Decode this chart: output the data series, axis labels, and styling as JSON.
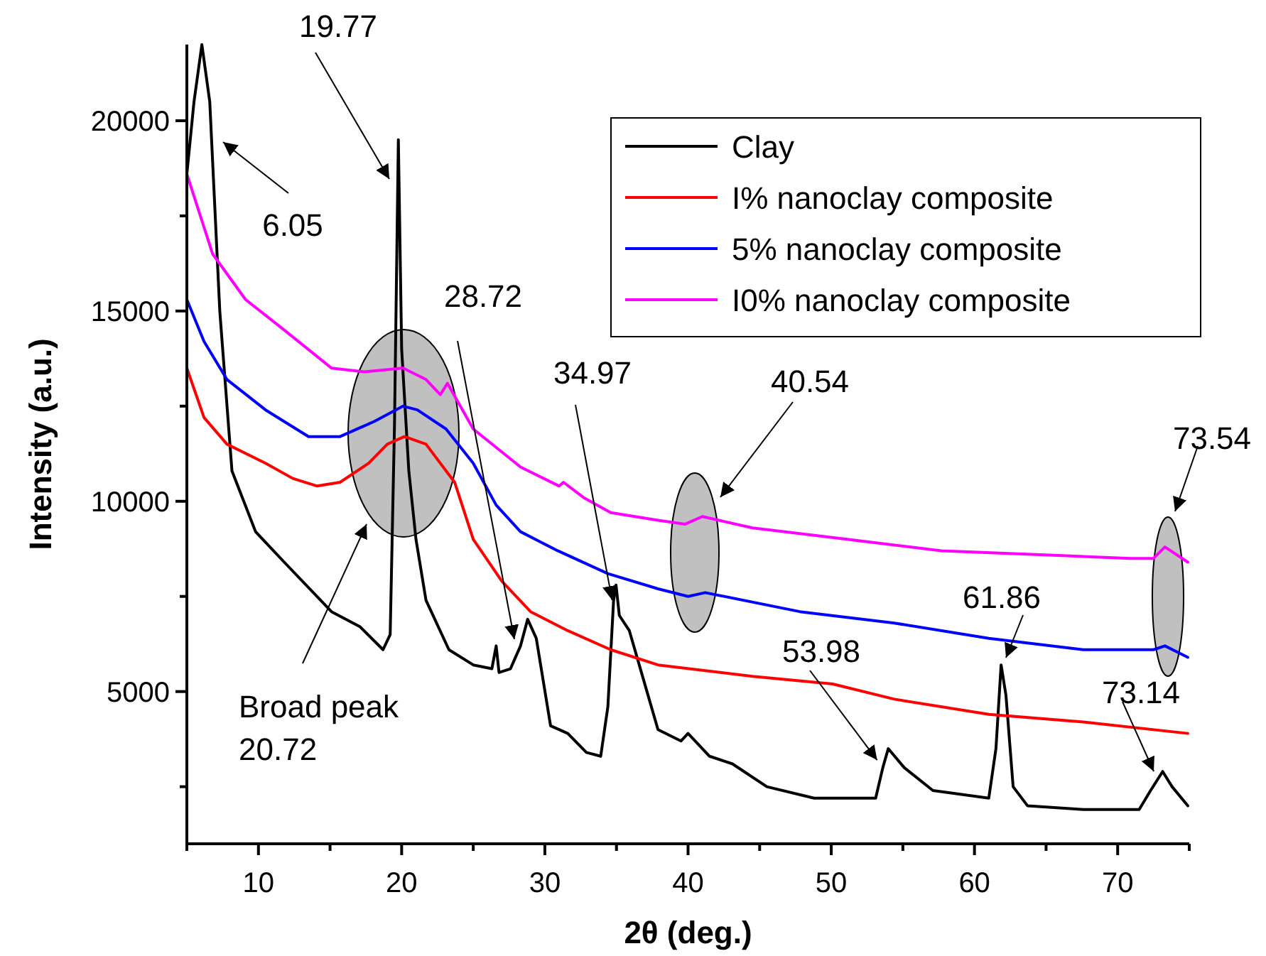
{
  "chart_data": {
    "type": "line",
    "xlabel": "2θ (deg.)",
    "ylabel": "Intensity (a.u.)",
    "xlim": [
      5,
      75
    ],
    "ylim": [
      1000,
      22000
    ],
    "xticks": [
      {
        "value": 5,
        "label": null
      },
      10,
      {
        "value": 15,
        "label": null
      },
      20,
      {
        "value": 25,
        "label": null
      },
      30,
      {
        "value": 35,
        "label": null
      },
      40,
      {
        "value": 45,
        "label": null
      },
      50,
      {
        "value": 55,
        "label": null
      },
      60,
      {
        "value": 65,
        "label": null
      },
      70,
      {
        "value": 75,
        "label": null
      }
    ],
    "yticks": [
      {
        "value": 2500,
        "label": null
      },
      5000,
      {
        "value": 7500,
        "label": null
      },
      10000,
      {
        "value": 12500,
        "label": null
      },
      15000,
      {
        "value": 17500,
        "label": null
      },
      20000
    ],
    "grid": false,
    "legend": "top right",
    "line_style": "solid",
    "series": [
      {
        "name": "Clay",
        "color": "#000000",
        "x": [
          5.0,
          5.5,
          6.05,
          6.6,
          7.3,
          8.15,
          9.8,
          11.8,
          15.1,
          17.1,
          18.7,
          19.2,
          19.5,
          19.77,
          20.0,
          20.5,
          21.0,
          21.7,
          23.3,
          25.0,
          26.3,
          26.6,
          26.8,
          27.6,
          28.3,
          28.8,
          29.4,
          30.4,
          31.6,
          32.9,
          33.9,
          34.4,
          34.8,
          34.97,
          35.2,
          35.9,
          36.9,
          37.9,
          39.5,
          40.0,
          41.5,
          43.1,
          45.5,
          48.8,
          53.1,
          53.6,
          53.98,
          55.1,
          57.1,
          61.0,
          61.5,
          61.86,
          62.2,
          62.7,
          63.7,
          67.6,
          71.5,
          72.3,
          73.14,
          73.8,
          74.9
        ],
        "values": [
          18600,
          20500,
          22000,
          20500,
          15000,
          10800,
          9200,
          8400,
          7100,
          6700,
          6100,
          6500,
          12000,
          19500,
          14000,
          10800,
          9000,
          7400,
          6100,
          5700,
          5600,
          6200,
          5500,
          5600,
          6200,
          6900,
          6400,
          4100,
          3900,
          3400,
          3300,
          4600,
          7400,
          7800,
          7000,
          6600,
          5300,
          4000,
          3700,
          3900,
          3300,
          3100,
          2500,
          2200,
          2200,
          3000,
          3500,
          3000,
          2400,
          2200,
          3500,
          5700,
          4900,
          2500,
          2000,
          1900,
          1900,
          2400,
          2900,
          2500,
          2000
        ]
      },
      {
        "name": "I% nanoclay composite",
        "color": "#ff0000",
        "x": [
          5.0,
          6.2,
          7.8,
          10.5,
          12.4,
          14.1,
          15.7,
          17.7,
          19.0,
          20.2,
          21.7,
          23.3,
          23.7,
          25.0,
          27.0,
          29.0,
          31.6,
          34.6,
          37.9,
          44.5,
          50.1,
          54.4,
          61.0,
          67.6,
          74.9
        ],
        "values": [
          13500,
          12200,
          11500,
          11000,
          10600,
          10400,
          10500,
          11000,
          11500,
          11700,
          11500,
          10700,
          10500,
          9000,
          7900,
          7100,
          6600,
          6100,
          5700,
          5400,
          5200,
          4800,
          4400,
          4200,
          3900
        ]
      },
      {
        "name": "5% nanoclay composite",
        "color": "#0000ff",
        "x": [
          5.0,
          6.2,
          7.8,
          10.5,
          13.5,
          15.7,
          18.1,
          20.1,
          21.1,
          23.1,
          25.0,
          26.6,
          28.3,
          30.9,
          34.4,
          37.9,
          40.0,
          41.2,
          47.8,
          54.4,
          61.0,
          67.6,
          72.5,
          73.3,
          74.9
        ],
        "values": [
          15300,
          14200,
          13200,
          12400,
          11700,
          11700,
          12100,
          12500,
          12400,
          11900,
          11000,
          9900,
          9200,
          8700,
          8100,
          7700,
          7500,
          7600,
          7100,
          6800,
          6400,
          6100,
          6100,
          6200,
          5900
        ]
      },
      {
        "name": "I0% nanoclay composite",
        "color": "#ff00ff",
        "x": [
          5.0,
          6.8,
          9.1,
          11.8,
          15.1,
          17.4,
          20.1,
          21.7,
          22.7,
          23.2,
          25.0,
          28.3,
          31.0,
          31.3,
          32.7,
          34.6,
          37.9,
          39.8,
          41.0,
          44.5,
          51.1,
          57.7,
          64.3,
          70.9,
          72.5,
          73.3,
          74.9
        ],
        "values": [
          18600,
          16500,
          15300,
          14500,
          13500,
          13400,
          13500,
          13200,
          12800,
          13100,
          11900,
          10900,
          10400,
          10500,
          10100,
          9700,
          9500,
          9400,
          9600,
          9300,
          9000,
          8700,
          8600,
          8500,
          8500,
          8800,
          8400
        ]
      }
    ],
    "annotations": [
      "19.77",
      "6.05",
      "28.72",
      {
        "text": "34.97",
        "x": 34.7,
        "y": 7400
      },
      "Broad peak\n20.72",
      "40.54",
      {
        "text": "53.98",
        "x": 53.2,
        "y": 3200
      },
      "61.86",
      "73.54",
      "73.14"
    ]
  }
}
